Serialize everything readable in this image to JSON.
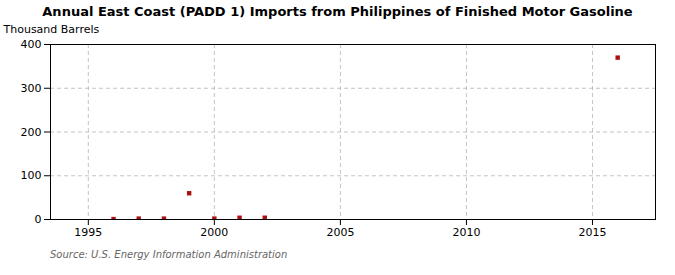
{
  "chart_data": {
    "type": "scatter",
    "title": "Annual East Coast (PADD 1) Imports from Philippines of Finished Motor Gasoline",
    "ylabel": "Thousand Barrels",
    "source": "Source: U.S. Energy Information Administration",
    "x": [
      1996,
      1997,
      1998,
      1999,
      2000,
      2001,
      2002,
      2016
    ],
    "values": [
      1,
      2,
      2,
      60,
      2,
      4,
      4,
      370
    ],
    "color": "#aa1111",
    "marker": "square",
    "xlim": [
      1993.5,
      2017.5
    ],
    "ylim": [
      0,
      400
    ],
    "xticks": [
      1995,
      2000,
      2005,
      2010,
      2015
    ],
    "yticks": [
      0,
      100,
      200,
      300,
      400
    ],
    "grid": true
  }
}
